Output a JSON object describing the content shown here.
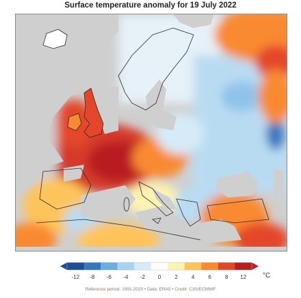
{
  "title": "Surface temperature anomaly for 19 July 2022",
  "footer": "Reference period: 1991-2020 • Data: ERA5 • Credit: C3S/ECMWF",
  "legend": {
    "ticks": [
      "-12",
      "-8",
      "-6",
      "-4",
      "-2",
      "0",
      "2",
      "4",
      "6",
      "8",
      "12"
    ],
    "unit": "°C",
    "colors": [
      "#1c4e96",
      "#3378bf",
      "#6aaee0",
      "#a6d3f0",
      "#d6ebf8",
      "#ffffff",
      "#fff3b0",
      "#fec45c",
      "#f98a32",
      "#e4462a",
      "#b81d24"
    ]
  },
  "map_colors": {
    "land_masked": "#cfcfcf",
    "hot": "#d63a2a",
    "very_hot": "#b81d24",
    "warm": "#f98a32",
    "mild": "#fff3b0",
    "cool": "#a6d3f0",
    "cold": "#3378bf"
  }
}
